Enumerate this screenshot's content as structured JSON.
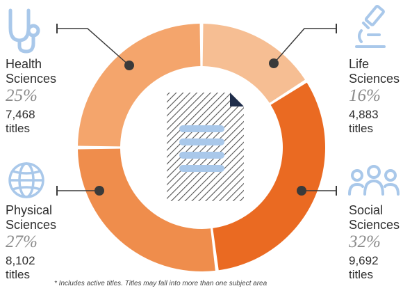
{
  "colors": {
    "health": "#F4A56C",
    "life": "#F6BE93",
    "physical": "#EF8D4C",
    "social": "#EA6A22",
    "icon": "#A9C8EA",
    "connector": "#3a3a3a",
    "document_lines": "#A9C8EA",
    "document_hatch": "#555555",
    "document_fold": "#1f2d4a"
  },
  "chart_data": {
    "type": "pie",
    "variant": "donut",
    "slices": [
      {
        "label": "Life Sciences",
        "value": 16,
        "count": "4,883",
        "icon": "microscope-icon"
      },
      {
        "label": "Social Sciences",
        "value": 32,
        "count": "9,692",
        "icon": "people-icon"
      },
      {
        "label": "Physical Sciences",
        "value": 27,
        "count": "8,102",
        "icon": "globe-icon"
      },
      {
        "label": "Health Sciences",
        "value": 25,
        "count": "7,468",
        "icon": "stethoscope-icon"
      }
    ],
    "center_icon": "document-icon"
  },
  "labels": {
    "health": {
      "name1": "Health",
      "name2": "Sciences",
      "pct": "25%",
      "count": "7,468",
      "unit": "titles"
    },
    "life": {
      "name1": "Life",
      "name2": "Sciences",
      "pct": "16%",
      "count": "4,883",
      "unit": "titles"
    },
    "physical": {
      "name1": "Physical",
      "name2": "Sciences",
      "pct": "27%",
      "count": "8,102",
      "unit": "titles"
    },
    "social": {
      "name1": "Social",
      "name2": "Sciences",
      "pct": "32%",
      "count": "9,692",
      "unit": "titles"
    }
  },
  "footnote": "* Includes active titles. Titles may fall into more than one subject area"
}
